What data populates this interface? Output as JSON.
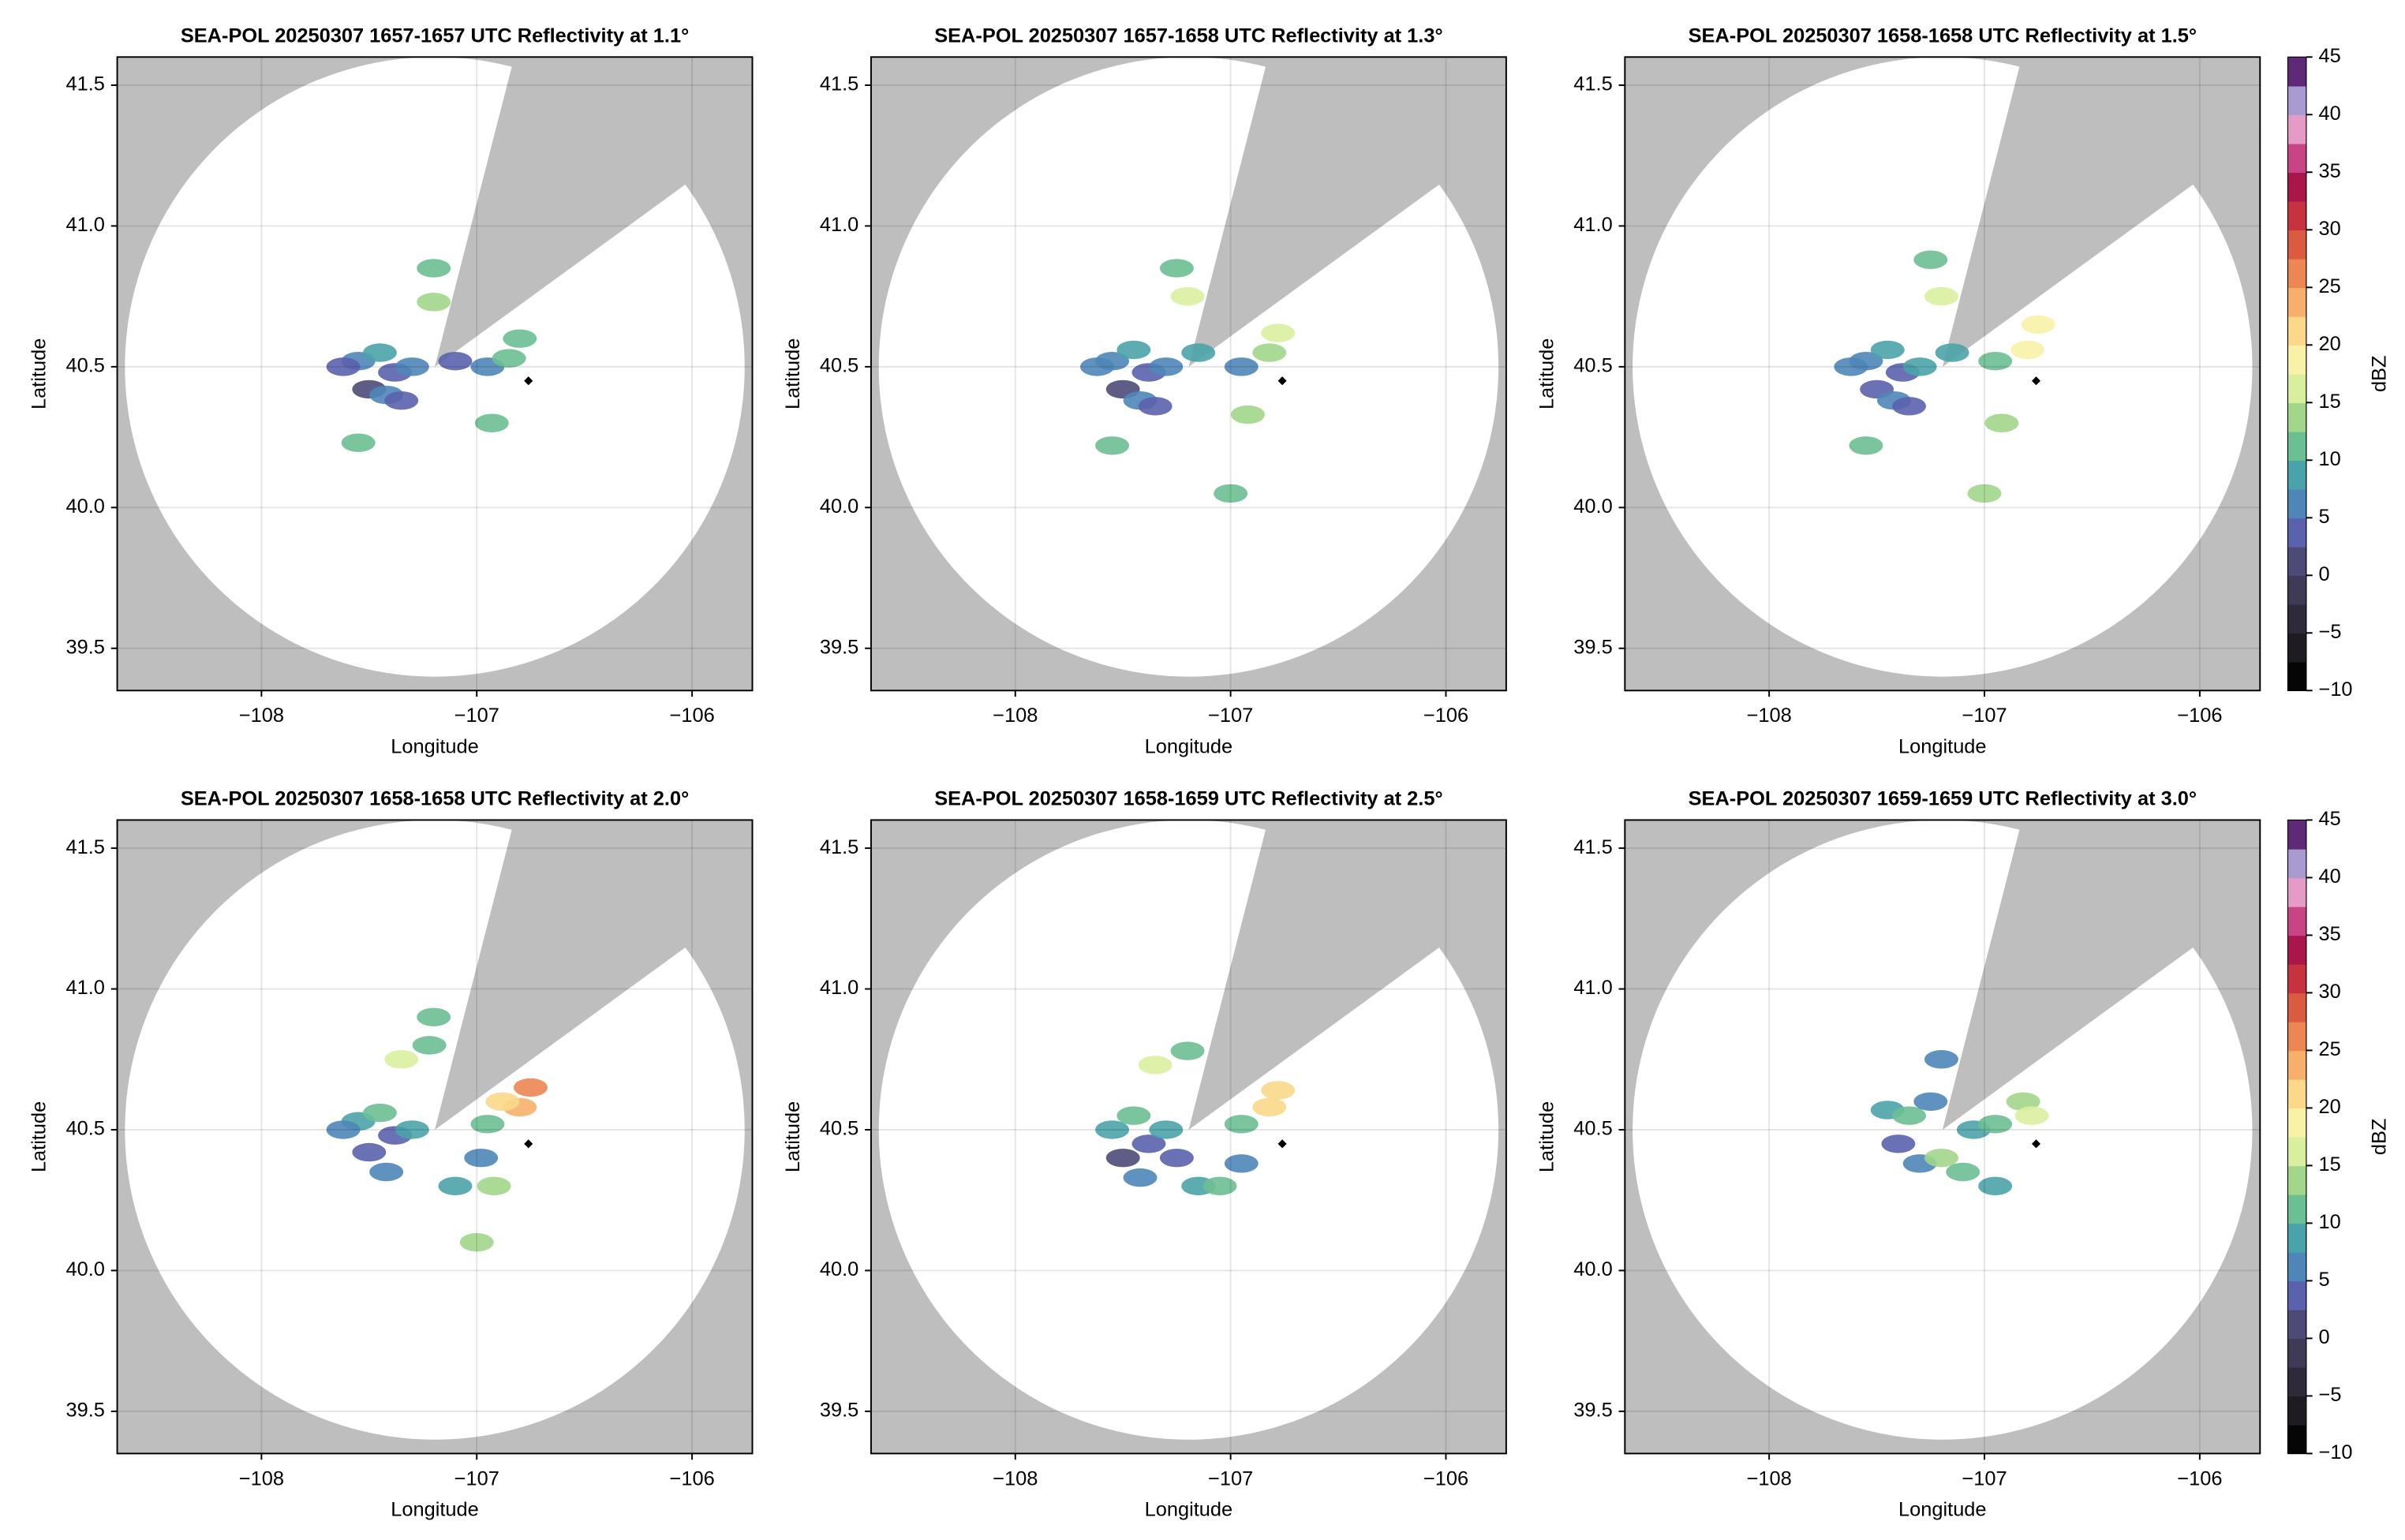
{
  "chart_data": [
    {
      "type": "heatmap",
      "title": "SEA-POL 20250307 1657-1657 UTC Reflectivity at 1.1°",
      "xlabel": "Longitude",
      "ylabel": "Latitude",
      "xlim": [
        -108.67,
        -105.72
      ],
      "ylim": [
        39.35,
        41.6
      ],
      "xticks": [
        {
          "value": -108,
          "label": "−108"
        },
        {
          "value": -107,
          "label": "−107"
        },
        {
          "value": -106,
          "label": "−106"
        }
      ],
      "yticks": [
        39.5,
        {
          "value": 40,
          "label": "40.0"
        },
        40.5,
        {
          "value": 41,
          "label": "41.0"
        },
        41.5
      ],
      "grid": true,
      "x": [
        -107.55,
        -107.45,
        -107.38,
        -107.3,
        -107.5,
        -107.62,
        -107.42,
        -107.2,
        -107.1,
        -106.95,
        -106.85,
        -106.8,
        -107.2,
        -107.55,
        -106.93,
        -107.35
      ],
      "y": [
        40.52,
        40.55,
        40.48,
        40.5,
        40.42,
        40.5,
        40.4,
        40.73,
        40.52,
        40.5,
        40.53,
        40.6,
        40.85,
        40.23,
        40.3,
        40.38
      ],
      "values": [
        5,
        8,
        3,
        6,
        2,
        4,
        5,
        14,
        4,
        6,
        10,
        12,
        10,
        10,
        12,
        3
      ],
      "site": {
        "x": -106.76,
        "y": 40.45
      }
    },
    {
      "type": "heatmap",
      "title": "SEA-POL 20250307 1657-1658 UTC Reflectivity at 1.3°",
      "xlabel": "Longitude",
      "ylabel": "Latitude",
      "xlim": [
        -108.67,
        -105.72
      ],
      "ylim": [
        39.35,
        41.6
      ],
      "xticks": [
        {
          "value": -108,
          "label": "−108"
        },
        {
          "value": -107,
          "label": "−107"
        },
        {
          "value": -106,
          "label": "−106"
        }
      ],
      "yticks": [
        39.5,
        {
          "value": 40,
          "label": "40.0"
        },
        40.5,
        {
          "value": 41,
          "label": "41.0"
        },
        41.5
      ],
      "grid": true,
      "x": [
        -107.55,
        -107.45,
        -107.38,
        -107.3,
        -107.5,
        -107.62,
        -107.42,
        -107.2,
        -107.15,
        -106.95,
        -106.82,
        -106.78,
        -107.25,
        -107.55,
        -106.92,
        -107.35,
        -107.0
      ],
      "y": [
        40.52,
        40.56,
        40.48,
        40.5,
        40.42,
        40.5,
        40.38,
        40.75,
        40.55,
        40.5,
        40.55,
        40.62,
        40.85,
        40.22,
        40.33,
        40.36,
        40.05
      ],
      "values": [
        6,
        9,
        3,
        7,
        2,
        5,
        5,
        15,
        8,
        7,
        14,
        15,
        11,
        11,
        13,
        3,
        12
      ],
      "site": {
        "x": -106.76,
        "y": 40.45
      }
    },
    {
      "type": "heatmap",
      "title": "SEA-POL 20250307 1658-1658 UTC Reflectivity at 1.5°",
      "xlabel": "Longitude",
      "ylabel": "Latitude",
      "xlim": [
        -108.67,
        -105.72
      ],
      "ylim": [
        39.35,
        41.6
      ],
      "xticks": [
        {
          "value": -108,
          "label": "−108"
        },
        {
          "value": -107,
          "label": "−107"
        },
        {
          "value": -106,
          "label": "−106"
        }
      ],
      "yticks": [
        39.5,
        {
          "value": 40,
          "label": "40.0"
        },
        40.5,
        {
          "value": 41,
          "label": "41.0"
        },
        41.5
      ],
      "grid": true,
      "x": [
        -107.55,
        -107.45,
        -107.38,
        -107.3,
        -107.5,
        -107.62,
        -107.42,
        -107.2,
        -107.15,
        -106.95,
        -106.8,
        -106.75,
        -107.25,
        -107.55,
        -106.92,
        -107.35,
        -107.0
      ],
      "y": [
        40.52,
        40.56,
        40.48,
        40.5,
        40.42,
        40.5,
        40.38,
        40.75,
        40.55,
        40.52,
        40.56,
        40.65,
        40.88,
        40.22,
        40.3,
        40.36,
        40.05
      ],
      "values": [
        7,
        9,
        3,
        8,
        3,
        6,
        5,
        17,
        8,
        10,
        18,
        19,
        12,
        11,
        14,
        4,
        13
      ],
      "site": {
        "x": -106.76,
        "y": 40.45
      },
      "colorbar": {
        "label": "dBZ",
        "lim": [
          -10,
          45
        ],
        "ticks": [
          {
            "value": -10,
            "label": "−10"
          },
          {
            "value": -5,
            "label": "−5"
          },
          0,
          5,
          10,
          15,
          20,
          25,
          30,
          35,
          40,
          45
        ],
        "colors": [
          "#050505",
          "#1e1b22",
          "#2e2a3a",
          "#3f3a55",
          "#4e4a78",
          "#5b62ad",
          "#4f86b8",
          "#4aa3aa",
          "#6bbf92",
          "#a2d68b",
          "#d9ef9f",
          "#f8f2a8",
          "#fbd88a",
          "#f6b06a",
          "#ec8652",
          "#db5a42",
          "#c7323f",
          "#a8164a",
          "#c94487",
          "#e49bc5",
          "#a99bd0",
          "#5e2a78"
        ]
      }
    },
    {
      "type": "heatmap",
      "title": "SEA-POL 20250307 1658-1658 UTC Reflectivity at 2.0°",
      "xlabel": "Longitude",
      "ylabel": "Latitude",
      "xlim": [
        -108.67,
        -105.72
      ],
      "ylim": [
        39.35,
        41.6
      ],
      "xticks": [
        {
          "value": -108,
          "label": "−108"
        },
        {
          "value": -107,
          "label": "−107"
        },
        {
          "value": -106,
          "label": "−106"
        }
      ],
      "yticks": [
        39.5,
        {
          "value": 40,
          "label": "40.0"
        },
        40.5,
        {
          "value": 41,
          "label": "41.0"
        },
        41.5
      ],
      "grid": true,
      "x": [
        -107.55,
        -107.45,
        -107.38,
        -107.3,
        -107.5,
        -107.62,
        -107.42,
        -107.35,
        -107.22,
        -106.95,
        -106.8,
        -106.75,
        -107.2,
        -107.1,
        -106.92,
        -106.98,
        -107.0,
        -106.88
      ],
      "y": [
        40.53,
        40.56,
        40.48,
        40.5,
        40.42,
        40.5,
        40.35,
        40.75,
        40.8,
        40.52,
        40.58,
        40.65,
        40.9,
        40.3,
        40.3,
        40.4,
        40.1,
        40.6
      ],
      "values": [
        8,
        10,
        4,
        9,
        3,
        6,
        6,
        17,
        12,
        12,
        24,
        26,
        11,
        9,
        14,
        5,
        13,
        22
      ],
      "site": {
        "x": -106.76,
        "y": 40.45
      }
    },
    {
      "type": "heatmap",
      "title": "SEA-POL 20250307 1658-1659 UTC Reflectivity at 2.5°",
      "xlabel": "Longitude",
      "ylabel": "Latitude",
      "xlim": [
        -108.67,
        -105.72
      ],
      "ylim": [
        39.35,
        41.6
      ],
      "xticks": [
        {
          "value": -108,
          "label": "−108"
        },
        {
          "value": -107,
          "label": "−107"
        },
        {
          "value": -106,
          "label": "−106"
        }
      ],
      "yticks": [
        39.5,
        {
          "value": 40,
          "label": "40.0"
        },
        40.5,
        {
          "value": 41,
          "label": "41.0"
        },
        41.5
      ],
      "grid": true,
      "x": [
        -107.55,
        -107.45,
        -107.38,
        -107.3,
        -107.5,
        -107.42,
        -107.35,
        -107.2,
        -106.95,
        -106.82,
        -106.78,
        -107.15,
        -107.05,
        -106.95,
        -107.25
      ],
      "y": [
        40.5,
        40.55,
        40.45,
        40.5,
        40.4,
        40.33,
        40.73,
        40.78,
        40.52,
        40.58,
        40.64,
        40.3,
        40.3,
        40.38,
        40.4
      ],
      "values": [
        8,
        10,
        3,
        9,
        2,
        6,
        16,
        12,
        12,
        22,
        21,
        8,
        10,
        5,
        4
      ],
      "site": {
        "x": -106.76,
        "y": 40.45
      }
    },
    {
      "type": "heatmap",
      "title": "SEA-POL 20250307 1659-1659 UTC Reflectivity at 3.0°",
      "xlabel": "Longitude",
      "ylabel": "Latitude",
      "xlim": [
        -108.67,
        -105.72
      ],
      "ylim": [
        39.35,
        41.6
      ],
      "xticks": [
        {
          "value": -108,
          "label": "−108"
        },
        {
          "value": -107,
          "label": "−107"
        },
        {
          "value": -106,
          "label": "−106"
        }
      ],
      "yticks": [
        39.5,
        {
          "value": 40,
          "label": "40.0"
        },
        40.5,
        {
          "value": 41,
          "label": "41.0"
        },
        41.5
      ],
      "grid": true,
      "x": [
        -107.45,
        -107.35,
        -107.25,
        -107.4,
        -107.3,
        -107.2,
        -107.05,
        -106.95,
        -106.82,
        -106.78,
        -107.1,
        -106.95,
        -107.2
      ],
      "y": [
        40.57,
        40.55,
        40.6,
        40.45,
        40.38,
        40.4,
        40.5,
        40.52,
        40.6,
        40.55,
        40.35,
        40.3,
        40.75
      ],
      "values": [
        9,
        10,
        7,
        4,
        6,
        14,
        8,
        11,
        14,
        15,
        10,
        9,
        6
      ],
      "site": {
        "x": -106.76,
        "y": 40.45
      },
      "colorbar": {
        "label": "dBZ",
        "lim": [
          -10,
          45
        ],
        "ticks": [
          {
            "value": -10,
            "label": "−10"
          },
          {
            "value": -5,
            "label": "−5"
          },
          0,
          5,
          10,
          15,
          20,
          25,
          30,
          35,
          40,
          45
        ],
        "colors": [
          "#050505",
          "#1e1b22",
          "#2e2a3a",
          "#3f3a55",
          "#4e4a78",
          "#5b62ad",
          "#4f86b8",
          "#4aa3aa",
          "#6bbf92",
          "#a2d68b",
          "#d9ef9f",
          "#f8f2a8",
          "#fbd88a",
          "#f6b06a",
          "#ec8652",
          "#db5a42",
          "#c7323f",
          "#a8164a",
          "#c94487",
          "#e49bc5",
          "#a99bd0",
          "#5e2a78"
        ]
      }
    }
  ]
}
